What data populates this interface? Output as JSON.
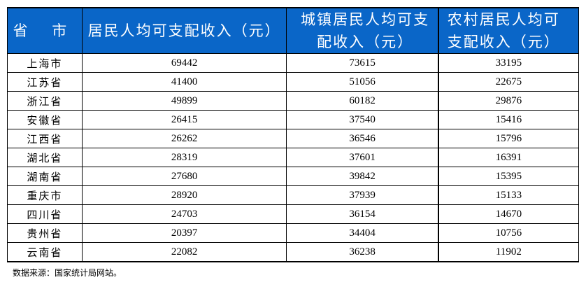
{
  "table": {
    "headers": [
      "省 市",
      "居民人均可支配收入（元）",
      "城镇居民人均可支配收入（元）",
      "农村居民人均可支配收入（元）"
    ],
    "rows": [
      [
        "上海市",
        "69442",
        "73615",
        "33195"
      ],
      [
        "江苏省",
        "41400",
        "51056",
        "22675"
      ],
      [
        "浙江省",
        "49899",
        "60182",
        "29876"
      ],
      [
        "安徽省",
        "26415",
        "37540",
        "15416"
      ],
      [
        "江西省",
        "26262",
        "36546",
        "15796"
      ],
      [
        "湖北省",
        "28319",
        "37601",
        "16391"
      ],
      [
        "湖南省",
        "27680",
        "39842",
        "15395"
      ],
      [
        "重庆市",
        "28920",
        "37939",
        "15133"
      ],
      [
        "四川省",
        "24703",
        "36154",
        "14670"
      ],
      [
        "贵州省",
        "20397",
        "34404",
        "10756"
      ],
      [
        "云南省",
        "22082",
        "36238",
        "11902"
      ]
    ]
  },
  "source": "数据来源：国家统计局网站。",
  "colors": {
    "header_bg": "#0a66c8",
    "header_text": "#ffffff"
  }
}
